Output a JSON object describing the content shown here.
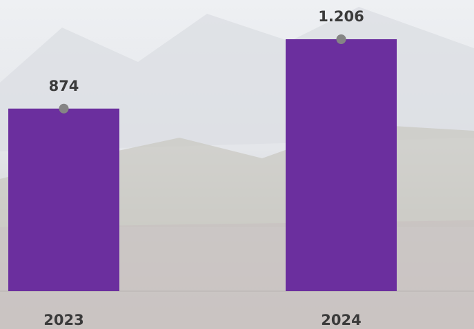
{
  "chart_data": {
    "type": "bar",
    "categories": [
      "2023",
      "2024"
    ],
    "values": [
      874,
      1206
    ],
    "value_labels": [
      "874",
      "1.206"
    ],
    "color": "#6b2f9e"
  }
}
